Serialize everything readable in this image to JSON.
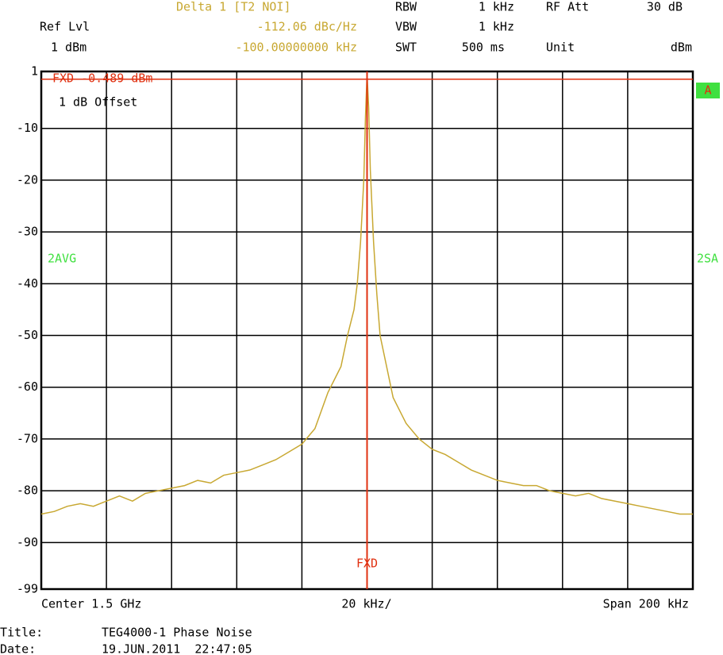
{
  "chart_data": {
    "type": "line",
    "xlim": [
      -100,
      100
    ],
    "xticks": [
      -100,
      -80,
      -60,
      -40,
      -20,
      0,
      20,
      40,
      60,
      80,
      100
    ],
    "ylim": [
      -99,
      1
    ],
    "yticks": [
      1,
      -10,
      -20,
      -30,
      -40,
      -50,
      -60,
      -70,
      -80,
      -90,
      -99
    ],
    "grid": true,
    "x": [
      -100,
      -96,
      -92,
      -88,
      -84,
      -80,
      -76,
      -72,
      -68,
      -64,
      -60,
      -56,
      -52,
      -48,
      -44,
      -40,
      -36,
      -32,
      -28,
      -24,
      -20,
      -16,
      -12,
      -8,
      -6,
      -4,
      -3,
      -2,
      -1,
      -0.5,
      0,
      0.5,
      1,
      2,
      3,
      4,
      6,
      8,
      12,
      16,
      20,
      24,
      28,
      32,
      36,
      40,
      44,
      48,
      52,
      56,
      60,
      64,
      68,
      72,
      76,
      80,
      84,
      88,
      92,
      96,
      100
    ],
    "series": [
      {
        "name": "2AVG",
        "color": "#c8a832",
        "values": [
          -84.5,
          -84,
          -83,
          -82.5,
          -83,
          -82,
          -81,
          -82,
          -80.5,
          -80,
          -79.5,
          -79,
          -78,
          -78.5,
          -77,
          -76.5,
          -76,
          -75,
          -74,
          -72.5,
          -71,
          -68,
          -61,
          -56,
          -50,
          -45,
          -40,
          -32,
          -20,
          -8,
          0.5,
          -6,
          -18,
          -32,
          -42,
          -50,
          -56,
          -62,
          -67,
          -70,
          -72,
          -73,
          -74.5,
          -76,
          -77,
          -78,
          -78.5,
          -79,
          -79,
          -80,
          -80.5,
          -81,
          -80.5,
          -81.5,
          -82,
          -82.5,
          -83,
          -83.5,
          -84,
          -84.5,
          -84.5
        ]
      }
    ],
    "reference": {
      "label": "FXD -0.489 dBm",
      "level": -0.489,
      "x": 0,
      "x_label": "FXD",
      "color": "#e03010"
    },
    "annotations": {
      "offset": "1 dB Offset",
      "left_trace": "2AVG",
      "right_trace": "2SA",
      "screen": "A"
    }
  },
  "instrument": {
    "marker_name": "Delta 1 [T2 NOI]",
    "marker_level": "-112.06 dBc/Hz",
    "marker_freq": "-100.00000000 kHz",
    "ref_label": "Ref Lvl",
    "ref_value": "1 dBm",
    "rbw_label": "RBW",
    "rbw_value": "1 kHz",
    "vbw_label": "VBW",
    "vbw_value": "1 kHz",
    "swt_label": "SWT",
    "swt_value": "500 ms",
    "att_label": "RF Att",
    "att_value": "30 dB",
    "unit_label": "Unit",
    "unit_value": "dBm"
  },
  "footer": {
    "center": "Center 1.5 GHz",
    "per_div": "20 kHz/",
    "span": "Span 200 kHz",
    "title_label": "Title:",
    "title_value": "TEG4000-1 Phase Noise",
    "date_label": "Date:",
    "date_value": "19.JUN.2011  22:47:05"
  }
}
